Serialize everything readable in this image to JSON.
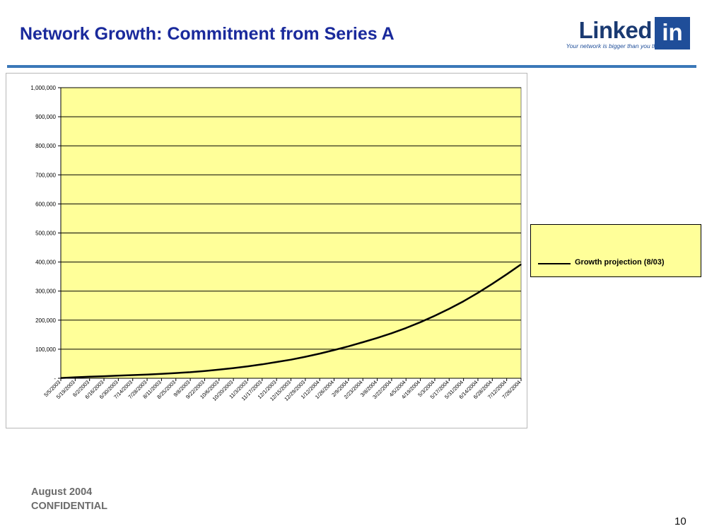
{
  "slide": {
    "title": "Network Growth: Commitment from Series A",
    "footer_date": "August 2004",
    "footer_confidential": "CONFIDENTIAL",
    "page_number": "10"
  },
  "logo": {
    "word": "Linked",
    "box_text": "in",
    "tagline": "Your network is bigger than you think"
  },
  "colors": {
    "title": "#1a2a9c",
    "plot_background": "#ffff99",
    "series_line": "#000000",
    "rule": "#3b78b8"
  },
  "chart_data": {
    "type": "line",
    "title": "",
    "xlabel": "",
    "ylabel": "",
    "ylim": [
      0,
      1000000
    ],
    "y_ticks": [
      "-",
      "100,000",
      "200,000",
      "300,000",
      "400,000",
      "500,000",
      "600,000",
      "700,000",
      "800,000",
      "900,000",
      "1,000,000"
    ],
    "grid": true,
    "legend": "right",
    "categories": [
      "5/5/2003",
      "5/19/2003",
      "6/2/2003",
      "6/16/2003",
      "6/30/2003",
      "7/14/2003",
      "7/28/2003",
      "8/11/2003",
      "8/25/2003",
      "9/8/2003",
      "9/22/2003",
      "10/6/2003",
      "10/20/2003",
      "11/3/2003",
      "11/17/2003",
      "12/1/2003",
      "12/15/2003",
      "12/29/2003",
      "1/12/2004",
      "1/26/2004",
      "2/9/2004",
      "2/23/2004",
      "3/8/2004",
      "3/22/2004",
      "4/5/2004",
      "4/19/2004",
      "5/3/2004",
      "5/17/2004",
      "5/31/2004",
      "6/14/2004",
      "6/28/2004",
      "7/12/2004",
      "7/26/2004"
    ],
    "series": [
      {
        "name": "Growth projection (8/03)",
        "values": [
          1000,
          3500,
          5500,
          7000,
          9000,
          11000,
          13000,
          15000,
          18000,
          21000,
          25000,
          30000,
          35000,
          41000,
          48000,
          56000,
          64000,
          74000,
          85000,
          97000,
          110000,
          124000,
          139000,
          155000,
          173000,
          193000,
          215000,
          239000,
          265000,
          294000,
          325000,
          358000,
          392000
        ]
      }
    ]
  }
}
